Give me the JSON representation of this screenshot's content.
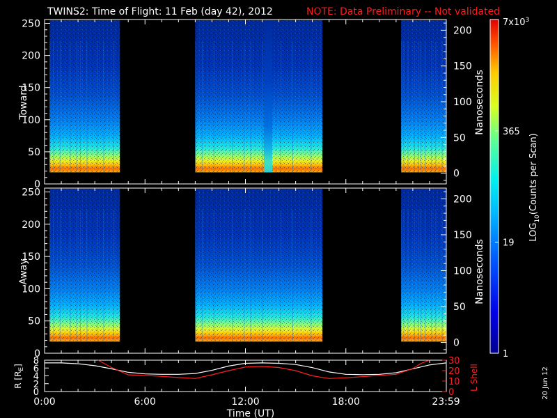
{
  "header": {
    "title": "TWINS2: Time of Flight: 11 Feb (day  42), 2012",
    "note": "NOTE: Data Preliminary -- Not validated"
  },
  "footer": {
    "date_stamp": "20 Jun 12"
  },
  "colors": {
    "note": "#ff1a1a",
    "r_line": "#ffffff",
    "l_line": "#ff2020"
  },
  "chart_data": [
    {
      "type": "heatmap",
      "panel": "toward",
      "ylabel": "Toward",
      "ylim": [
        0,
        256
      ],
      "yticks": [
        0,
        50,
        100,
        150,
        200,
        250
      ],
      "y2label": "Nanoseconds",
      "y2lim": [
        -15,
        215
      ],
      "y2ticks": [
        0,
        50,
        100,
        150,
        200
      ],
      "xlim": [
        0,
        24
      ],
      "data_intervals_hours": [
        [
          0.3,
          4.5
        ],
        [
          9.0,
          16.6
        ],
        [
          21.3,
          23.98
        ]
      ],
      "low_count_gap_hours": [
        13.1,
        13.6
      ]
    },
    {
      "type": "heatmap",
      "panel": "away",
      "ylabel": "Away",
      "ylim": [
        0,
        256
      ],
      "yticks": [
        0,
        50,
        100,
        150,
        200,
        250
      ],
      "y2label": "Nanoseconds",
      "y2lim": [
        -15,
        215
      ],
      "y2ticks": [
        0,
        50,
        100,
        150,
        200
      ],
      "xlim": [
        0,
        24
      ],
      "data_intervals_hours": [
        [
          0.3,
          4.5
        ],
        [
          9.0,
          16.6
        ],
        [
          21.3,
          23.98
        ]
      ]
    },
    {
      "type": "line",
      "panel": "orbit",
      "ylabel": "R [R",
      "ylabel_sub": "E",
      "ylabel_end": "]",
      "ylim": [
        0,
        8
      ],
      "yticks": [
        0,
        2,
        4,
        6,
        8
      ],
      "y2label": "L Shell",
      "y2lim": [
        0,
        30
      ],
      "y2ticks": [
        0,
        10,
        20,
        30
      ],
      "xlabel": "Time (UT)",
      "xlim": [
        0,
        24
      ],
      "xticks": [
        {
          "value": 0,
          "label": "0:00"
        },
        {
          "value": 6,
          "label": "6:00"
        },
        {
          "value": 12,
          "label": "12:00"
        },
        {
          "value": 18,
          "label": "18:00"
        },
        {
          "value": 23.98,
          "label": "23:59"
        }
      ],
      "series": [
        {
          "name": "R",
          "x": [
            0,
            1,
            2,
            3,
            4,
            5,
            6,
            7,
            8,
            9,
            10,
            11,
            12,
            13,
            14,
            15,
            16,
            17,
            18,
            19,
            20,
            21,
            22,
            23,
            24
          ],
          "y": [
            7.3,
            7.3,
            7.1,
            6.6,
            5.8,
            4.9,
            4.5,
            4.4,
            4.4,
            4.6,
            5.4,
            6.5,
            7.2,
            7.3,
            7.2,
            6.9,
            6.1,
            5.0,
            4.4,
            4.3,
            4.4,
            4.8,
            5.8,
            6.8,
            7.3
          ]
        },
        {
          "name": "L Shell",
          "x": [
            3.2,
            4,
            5,
            6,
            7,
            8,
            9,
            10,
            11,
            12,
            13,
            14,
            15,
            16,
            17,
            18,
            19,
            20,
            21,
            22,
            22.5,
            23
          ],
          "y": [
            30,
            23,
            16,
            15.5,
            14.5,
            13.5,
            12.5,
            16,
            20,
            23.5,
            24,
            23,
            20,
            15,
            12.5,
            13.2,
            14.2,
            15.5,
            16.5,
            22,
            27,
            30
          ]
        }
      ]
    },
    {
      "type": "colorbar",
      "label": "LOG",
      "label_sub": "10",
      "label_end": "(Counts per Scan)",
      "scale": "log",
      "vlim": [
        1,
        7000
      ],
      "ticks": [
        {
          "value": 1,
          "label": "1"
        },
        {
          "value": 19,
          "label": "19"
        },
        {
          "value": 365,
          "label": "365"
        },
        {
          "value": 7000,
          "label": "7x10",
          "sup": "3"
        }
      ]
    }
  ]
}
